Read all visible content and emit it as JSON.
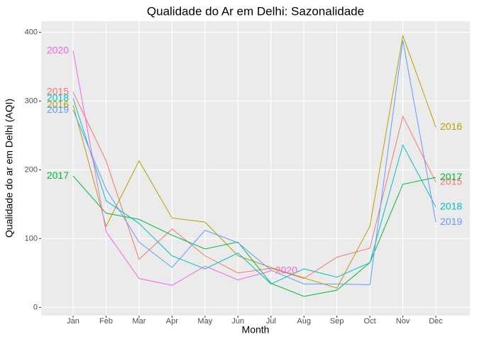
{
  "chart_data": {
    "type": "line",
    "title": "Qualidade do Ar em Delhi: Sazonalidade",
    "x_label": "Month",
    "y_label": "Qualidade do ar em Delhi (AQI)",
    "categories": [
      "Jan",
      "Feb",
      "Mar",
      "Apr",
      "May",
      "Jun",
      "Jul",
      "Aug",
      "Sep",
      "Oct",
      "Nov",
      "Dec"
    ],
    "ylim": [
      -12,
      416
    ],
    "yticks": [
      0,
      100,
      200,
      300,
      400
    ],
    "grid": true,
    "series": [
      {
        "name": "2015",
        "color": "#F8766D",
        "values": [
          313,
          213,
          70,
          114,
          75,
          50,
          57,
          42,
          73,
          86,
          278,
          182
        ]
      },
      {
        "name": "2016",
        "color": "#B79F00",
        "values": [
          294,
          118,
          213,
          130,
          124,
          75,
          58,
          43,
          28,
          118,
          395,
          262
        ]
      },
      {
        "name": "2017",
        "color": "#00BA38",
        "values": [
          191,
          137,
          128,
          105,
          85,
          95,
          35,
          16,
          25,
          65,
          179,
          189
        ]
      },
      {
        "name": "2018",
        "color": "#00BFC4",
        "values": [
          304,
          155,
          122,
          75,
          56,
          79,
          34,
          56,
          44,
          65,
          236,
          146
        ]
      },
      {
        "name": "2019",
        "color": "#619CFF",
        "values": [
          287,
          172,
          95,
          58,
          112,
          94,
          54,
          34,
          34,
          33,
          388,
          124
        ]
      },
      {
        "name": "2020",
        "color": "#F564E3",
        "values": [
          373,
          110,
          42,
          32,
          60,
          40,
          53,
          null,
          null,
          null,
          null,
          null
        ]
      }
    ]
  }
}
